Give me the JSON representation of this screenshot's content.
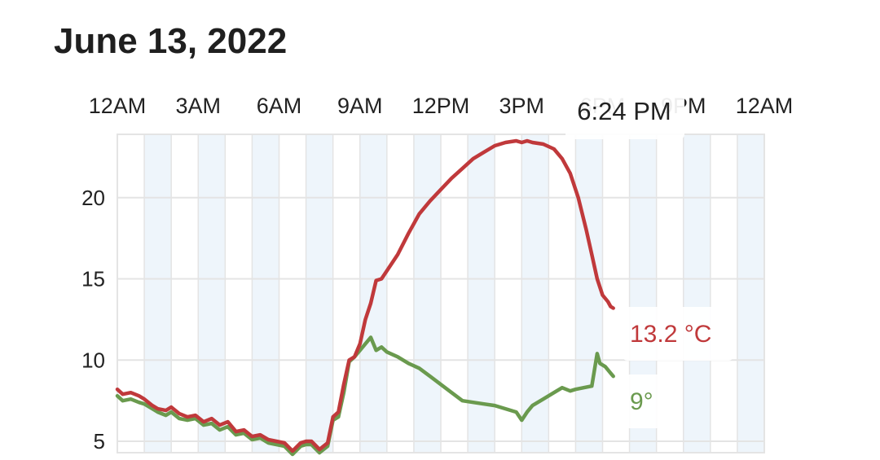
{
  "header": {
    "date": "June 13, 2022"
  },
  "cursor": {
    "time": "6:24 PM"
  },
  "colors": {
    "temperature": "#c0393b",
    "dewpoint": "#6a9a4e",
    "stripe": "#eef5fb",
    "grid": "#e4e4e4"
  },
  "chart_data": {
    "type": "line",
    "title": "June 13, 2022",
    "x_tick_labels": [
      "12AM",
      "3AM",
      "6AM",
      "9AM",
      "12PM",
      "3PM",
      "6PM",
      "9PM",
      "12AM"
    ],
    "x_unit": "hour of day",
    "xlim": [
      0,
      24
    ],
    "y_tick_labels": [
      "5",
      "10",
      "15",
      "20"
    ],
    "ylim": [
      4.3,
      23.9
    ],
    "grid": true,
    "series": [
      {
        "key": "temperature",
        "color": "#c0393b",
        "readout": "13.2 °C",
        "x": [
          0,
          0.2,
          0.5,
          0.8,
          1.0,
          1.3,
          1.5,
          1.8,
          2.0,
          2.3,
          2.6,
          2.9,
          3.2,
          3.5,
          3.8,
          4.1,
          4.4,
          4.7,
          5.0,
          5.3,
          5.6,
          5.9,
          6.2,
          6.5,
          6.8,
          7.0,
          7.2,
          7.5,
          7.8,
          8.0,
          8.2,
          8.4,
          8.6,
          8.8,
          9.0,
          9.2,
          9.4,
          9.6,
          9.8,
          10.0,
          10.4,
          10.8,
          11.2,
          11.6,
          12.0,
          12.4,
          12.8,
          13.2,
          13.6,
          14.0,
          14.4,
          14.8,
          15.0,
          15.2,
          15.4,
          15.8,
          16.2,
          16.5,
          16.8,
          17.1,
          17.4,
          17.6,
          17.8,
          18.0,
          18.2,
          18.3,
          18.4
        ],
        "y": [
          8.2,
          7.9,
          8.0,
          7.8,
          7.6,
          7.2,
          7.0,
          6.9,
          7.1,
          6.7,
          6.5,
          6.6,
          6.2,
          6.4,
          6.0,
          6.2,
          5.6,
          5.7,
          5.3,
          5.4,
          5.1,
          5.0,
          4.9,
          4.4,
          4.9,
          5.0,
          5.0,
          4.5,
          4.9,
          6.5,
          6.8,
          8.5,
          10.0,
          10.2,
          11.0,
          12.5,
          13.5,
          14.9,
          15.0,
          15.5,
          16.5,
          17.8,
          19.0,
          19.8,
          20.5,
          21.2,
          21.8,
          22.4,
          22.8,
          23.2,
          23.4,
          23.5,
          23.4,
          23.5,
          23.4,
          23.3,
          23.0,
          22.4,
          21.5,
          20.0,
          18.0,
          16.5,
          15.0,
          14.0,
          13.6,
          13.3,
          13.2
        ]
      },
      {
        "key": "dewpoint",
        "color": "#6a9a4e",
        "readout": "9°",
        "x": [
          0,
          0.2,
          0.5,
          0.8,
          1.0,
          1.3,
          1.5,
          1.8,
          2.0,
          2.3,
          2.6,
          2.9,
          3.2,
          3.5,
          3.8,
          4.1,
          4.4,
          4.7,
          5.0,
          5.3,
          5.6,
          5.9,
          6.2,
          6.5,
          6.8,
          7.0,
          7.2,
          7.5,
          7.8,
          8.0,
          8.2,
          8.4,
          8.6,
          8.8,
          9.0,
          9.2,
          9.4,
          9.6,
          9.8,
          10.0,
          10.4,
          10.8,
          11.2,
          11.6,
          12.0,
          12.4,
          12.8,
          13.2,
          13.6,
          14.0,
          14.4,
          14.8,
          15.0,
          15.2,
          15.4,
          15.8,
          16.2,
          16.5,
          16.8,
          17.0,
          17.3,
          17.6,
          17.8,
          17.9,
          18.1,
          18.3,
          18.4
        ],
        "y": [
          7.8,
          7.5,
          7.6,
          7.4,
          7.3,
          7.0,
          6.8,
          6.6,
          6.8,
          6.4,
          6.3,
          6.4,
          6.0,
          6.1,
          5.7,
          5.9,
          5.4,
          5.5,
          5.1,
          5.2,
          4.9,
          4.8,
          4.7,
          4.2,
          4.7,
          4.8,
          4.8,
          4.3,
          4.7,
          6.3,
          6.5,
          8.0,
          9.9,
          10.2,
          10.6,
          11.0,
          11.4,
          10.6,
          10.8,
          10.5,
          10.2,
          9.8,
          9.5,
          9.0,
          8.5,
          8.0,
          7.5,
          7.4,
          7.3,
          7.2,
          7.0,
          6.8,
          6.3,
          6.8,
          7.2,
          7.6,
          8.0,
          8.3,
          8.1,
          8.2,
          8.3,
          8.4,
          10.4,
          9.8,
          9.6,
          9.2,
          9.0
        ]
      }
    ]
  }
}
